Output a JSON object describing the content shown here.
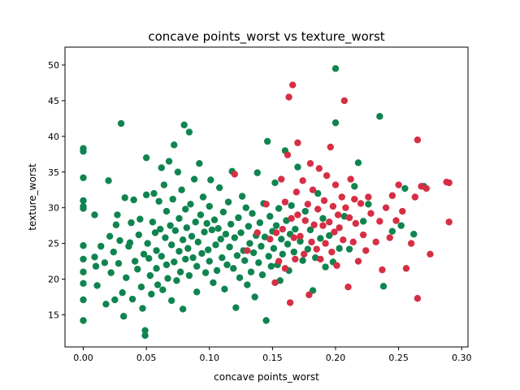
{
  "chart_data": {
    "type": "scatter",
    "title": "concave points_worst vs texture_worst",
    "xlabel": "concave points_worst",
    "ylabel": "texture_worst",
    "xlim": [
      -0.0145,
      0.305
    ],
    "ylim": [
      10.5,
      52.5
    ],
    "xticks": [
      0.0,
      0.05,
      0.1,
      0.15,
      0.2,
      0.25,
      0.3
    ],
    "xtick_labels": [
      "0.00",
      "0.05",
      "0.10",
      "0.15",
      "0.20",
      "0.25",
      "0.30"
    ],
    "yticks": [
      15,
      20,
      25,
      30,
      35,
      40,
      45,
      50
    ],
    "ytick_labels": [
      "15",
      "20",
      "25",
      "30",
      "35",
      "40",
      "45",
      "50"
    ],
    "grid": false,
    "legend": "none",
    "series": [
      {
        "color": "#10844f",
        "points": [
          [
            0.0,
            38.3
          ],
          [
            0.0,
            37.9
          ],
          [
            0.0,
            34.2
          ],
          [
            0.0,
            31.0
          ],
          [
            0.0,
            30.2
          ],
          [
            0.0,
            29.9
          ],
          [
            0.0,
            24.7
          ],
          [
            0.0,
            22.8
          ],
          [
            0.0,
            21.0
          ],
          [
            0.0,
            19.4
          ],
          [
            0.0,
            17.1
          ],
          [
            0.0,
            14.2
          ],
          [
            0.009,
            29.0
          ],
          [
            0.009,
            23.1
          ],
          [
            0.01,
            21.8
          ],
          [
            0.011,
            19.1
          ],
          [
            0.014,
            24.6
          ],
          [
            0.017,
            22.3
          ],
          [
            0.018,
            16.5
          ],
          [
            0.02,
            33.8
          ],
          [
            0.021,
            26.0
          ],
          [
            0.022,
            20.9
          ],
          [
            0.024,
            23.8
          ],
          [
            0.025,
            17.1
          ],
          [
            0.026,
            27.6
          ],
          [
            0.027,
            29.0
          ],
          [
            0.028,
            22.2
          ],
          [
            0.029,
            25.4
          ],
          [
            0.03,
            41.8
          ],
          [
            0.031,
            18.1
          ],
          [
            0.032,
            14.8
          ],
          [
            0.033,
            31.4
          ],
          [
            0.034,
            20.2
          ],
          [
            0.036,
            24.6
          ],
          [
            0.037,
            25.1
          ],
          [
            0.038,
            27.9
          ],
          [
            0.039,
            17.2
          ],
          [
            0.04,
            31.1
          ],
          [
            0.041,
            22.5
          ],
          [
            0.043,
            21.4
          ],
          [
            0.044,
            26.2
          ],
          [
            0.045,
            28.4
          ],
          [
            0.046,
            18.9
          ],
          [
            0.047,
            15.9
          ],
          [
            0.048,
            23.5
          ],
          [
            0.049,
            12.8
          ],
          [
            0.049,
            12.1
          ],
          [
            0.05,
            37.0
          ],
          [
            0.05,
            31.8
          ],
          [
            0.051,
            25.0
          ],
          [
            0.052,
            22.9
          ],
          [
            0.053,
            20.5
          ],
          [
            0.054,
            17.9
          ],
          [
            0.055,
            28.0
          ],
          [
            0.056,
            32.0
          ],
          [
            0.057,
            26.5
          ],
          [
            0.058,
            24.0
          ],
          [
            0.058,
            21.5
          ],
          [
            0.059,
            19.2
          ],
          [
            0.06,
            30.9
          ],
          [
            0.061,
            27.0
          ],
          [
            0.062,
            35.6
          ],
          [
            0.062,
            23.2
          ],
          [
            0.063,
            18.5
          ],
          [
            0.064,
            33.2
          ],
          [
            0.065,
            25.8
          ],
          [
            0.066,
            29.5
          ],
          [
            0.066,
            22.0
          ],
          [
            0.067,
            20.1
          ],
          [
            0.068,
            36.5
          ],
          [
            0.069,
            27.5
          ],
          [
            0.07,
            24.8
          ],
          [
            0.07,
            17.0
          ],
          [
            0.071,
            31.2
          ],
          [
            0.072,
            38.8
          ],
          [
            0.072,
            22.4
          ],
          [
            0.073,
            26.8
          ],
          [
            0.074,
            19.8
          ],
          [
            0.075,
            35.0
          ],
          [
            0.076,
            28.5
          ],
          [
            0.076,
            23.9
          ],
          [
            0.077,
            21.0
          ],
          [
            0.078,
            32.5
          ],
          [
            0.079,
            25.5
          ],
          [
            0.079,
            15.8
          ],
          [
            0.08,
            41.6
          ],
          [
            0.081,
            29.8
          ],
          [
            0.081,
            22.8
          ],
          [
            0.082,
            27.2
          ],
          [
            0.083,
            24.3
          ],
          [
            0.084,
            40.6
          ],
          [
            0.084,
            20.5
          ],
          [
            0.085,
            30.5
          ],
          [
            0.086,
            26.0
          ],
          [
            0.087,
            23.0
          ],
          [
            0.088,
            34.0
          ],
          [
            0.089,
            28.0
          ],
          [
            0.09,
            21.8
          ],
          [
            0.09,
            18.2
          ],
          [
            0.091,
            25.2
          ],
          [
            0.092,
            36.2
          ],
          [
            0.093,
            29.0
          ],
          [
            0.094,
            23.6
          ],
          [
            0.095,
            31.5
          ],
          [
            0.096,
            26.6
          ],
          [
            0.097,
            20.9
          ],
          [
            0.098,
            27.8
          ],
          [
            0.099,
            24.1
          ],
          [
            0.1,
            30.2
          ],
          [
            0.1,
            22.5
          ],
          [
            0.101,
            33.9
          ],
          [
            0.102,
            26.9
          ],
          [
            0.103,
            19.5
          ],
          [
            0.104,
            28.3
          ],
          [
            0.105,
            24.8
          ],
          [
            0.106,
            21.2
          ],
          [
            0.107,
            27.1
          ],
          [
            0.108,
            32.8
          ],
          [
            0.109,
            25.6
          ],
          [
            0.11,
            23.0
          ],
          [
            0.111,
            29.4
          ],
          [
            0.112,
            18.6
          ],
          [
            0.113,
            26.3
          ],
          [
            0.114,
            22.0
          ],
          [
            0.115,
            30.8
          ],
          [
            0.116,
            24.5
          ],
          [
            0.117,
            27.7
          ],
          [
            0.118,
            35.1
          ],
          [
            0.119,
            21.5
          ],
          [
            0.12,
            25.8
          ],
          [
            0.121,
            16.0
          ],
          [
            0.122,
            23.3
          ],
          [
            0.123,
            28.6
          ],
          [
            0.124,
            20.2
          ],
          [
            0.125,
            26.5
          ],
          [
            0.126,
            31.6
          ],
          [
            0.127,
            24.0
          ],
          [
            0.128,
            22.6
          ],
          [
            0.129,
            30.0
          ],
          [
            0.13,
            19.2
          ],
          [
            0.131,
            27.4
          ],
          [
            0.132,
            25.0
          ],
          [
            0.133,
            21.0
          ],
          [
            0.134,
            29.2
          ],
          [
            0.135,
            23.7
          ],
          [
            0.136,
            17.5
          ],
          [
            0.137,
            26.1
          ],
          [
            0.138,
            34.9
          ],
          [
            0.139,
            22.3
          ],
          [
            0.14,
            27.9
          ],
          [
            0.141,
            24.6
          ],
          [
            0.142,
            20.6
          ],
          [
            0.143,
            30.6
          ],
          [
            0.144,
            25.9
          ],
          [
            0.145,
            14.2
          ],
          [
            0.146,
            39.3
          ],
          [
            0.147,
            23.2
          ],
          [
            0.148,
            28.8
          ],
          [
            0.149,
            21.8
          ],
          [
            0.15,
            26.7
          ],
          [
            0.151,
            24.3
          ],
          [
            0.152,
            33.5
          ],
          [
            0.153,
            27.5
          ],
          [
            0.154,
            22.0
          ],
          [
            0.155,
            29.9
          ],
          [
            0.156,
            19.8
          ],
          [
            0.157,
            25.6
          ],
          [
            0.158,
            23.5
          ],
          [
            0.16,
            38.0
          ],
          [
            0.161,
            28.2
          ],
          [
            0.162,
            24.9
          ],
          [
            0.163,
            21.2
          ],
          [
            0.164,
            26.3
          ],
          [
            0.165,
            30.3
          ],
          [
            0.167,
            23.8
          ],
          [
            0.168,
            27.0
          ],
          [
            0.17,
            35.7
          ],
          [
            0.172,
            25.3
          ],
          [
            0.174,
            22.6
          ],
          [
            0.176,
            29.5
          ],
          [
            0.178,
            24.2
          ],
          [
            0.18,
            26.9
          ],
          [
            0.182,
            18.4
          ],
          [
            0.184,
            23.0
          ],
          [
            0.186,
            32.0
          ],
          [
            0.188,
            25.7
          ],
          [
            0.19,
            28.5
          ],
          [
            0.192,
            21.7
          ],
          [
            0.195,
            26.1
          ],
          [
            0.198,
            22.4
          ],
          [
            0.2,
            49.5
          ],
          [
            0.2,
            41.9
          ],
          [
            0.203,
            24.3
          ],
          [
            0.207,
            28.8
          ],
          [
            0.211,
            24.2
          ],
          [
            0.215,
            33.0
          ],
          [
            0.218,
            36.3
          ],
          [
            0.222,
            28.1
          ],
          [
            0.226,
            30.5
          ],
          [
            0.235,
            42.8
          ],
          [
            0.238,
            19.0
          ],
          [
            0.245,
            26.7
          ],
          [
            0.252,
            27.5
          ],
          [
            0.255,
            32.7
          ],
          [
            0.262,
            26.3
          ],
          [
            0.27,
            33.0
          ]
        ]
      },
      {
        "color": "#d62f45",
        "points": [
          [
            0.12,
            34.7
          ],
          [
            0.13,
            24.0
          ],
          [
            0.138,
            26.5
          ],
          [
            0.145,
            30.5
          ],
          [
            0.148,
            25.6
          ],
          [
            0.152,
            19.5
          ],
          [
            0.153,
            26.5
          ],
          [
            0.155,
            22.5
          ],
          [
            0.157,
            34.0
          ],
          [
            0.158,
            27.0
          ],
          [
            0.16,
            30.8
          ],
          [
            0.16,
            21.5
          ],
          [
            0.162,
            37.4
          ],
          [
            0.163,
            45.5
          ],
          [
            0.164,
            16.7
          ],
          [
            0.165,
            28.5
          ],
          [
            0.166,
            47.2
          ],
          [
            0.167,
            25.8
          ],
          [
            0.168,
            22.8
          ],
          [
            0.169,
            32.2
          ],
          [
            0.17,
            39.1
          ],
          [
            0.17,
            29.0
          ],
          [
            0.172,
            26.0
          ],
          [
            0.174,
            33.8
          ],
          [
            0.175,
            23.5
          ],
          [
            0.176,
            28.2
          ],
          [
            0.178,
            30.5
          ],
          [
            0.179,
            17.8
          ],
          [
            0.18,
            36.2
          ],
          [
            0.181,
            25.2
          ],
          [
            0.182,
            32.5
          ],
          [
            0.183,
            27.6
          ],
          [
            0.185,
            24.2
          ],
          [
            0.186,
            29.8
          ],
          [
            0.187,
            35.5
          ],
          [
            0.188,
            22.8
          ],
          [
            0.19,
            27.5
          ],
          [
            0.191,
            31.0
          ],
          [
            0.192,
            25.0
          ],
          [
            0.193,
            34.5
          ],
          [
            0.195,
            28.0
          ],
          [
            0.196,
            38.5
          ],
          [
            0.197,
            23.8
          ],
          [
            0.198,
            30.2
          ],
          [
            0.199,
            26.6
          ],
          [
            0.2,
            33.2
          ],
          [
            0.201,
            21.9
          ],
          [
            0.202,
            29.0
          ],
          [
            0.203,
            27.2
          ],
          [
            0.205,
            31.5
          ],
          [
            0.206,
            25.5
          ],
          [
            0.207,
            45.0
          ],
          [
            0.208,
            30.0
          ],
          [
            0.21,
            18.9
          ],
          [
            0.211,
            28.6
          ],
          [
            0.212,
            34.0
          ],
          [
            0.214,
            25.2
          ],
          [
            0.215,
            31.2
          ],
          [
            0.216,
            27.8
          ],
          [
            0.218,
            22.5
          ],
          [
            0.22,
            30.6
          ],
          [
            0.222,
            26.2
          ],
          [
            0.224,
            24.0
          ],
          [
            0.226,
            31.5
          ],
          [
            0.228,
            29.2
          ],
          [
            0.232,
            25.2
          ],
          [
            0.235,
            28.1
          ],
          [
            0.237,
            21.3
          ],
          [
            0.24,
            30.0
          ],
          [
            0.243,
            25.8
          ],
          [
            0.245,
            31.7
          ],
          [
            0.248,
            28.2
          ],
          [
            0.25,
            33.2
          ],
          [
            0.253,
            29.5
          ],
          [
            0.256,
            21.5
          ],
          [
            0.26,
            25.0
          ],
          [
            0.263,
            31.5
          ],
          [
            0.265,
            39.5
          ],
          [
            0.265,
            17.3
          ],
          [
            0.268,
            33.0
          ],
          [
            0.272,
            32.7
          ],
          [
            0.275,
            23.5
          ],
          [
            0.288,
            33.6
          ],
          [
            0.29,
            33.5
          ],
          [
            0.29,
            28.0
          ]
        ]
      }
    ]
  }
}
